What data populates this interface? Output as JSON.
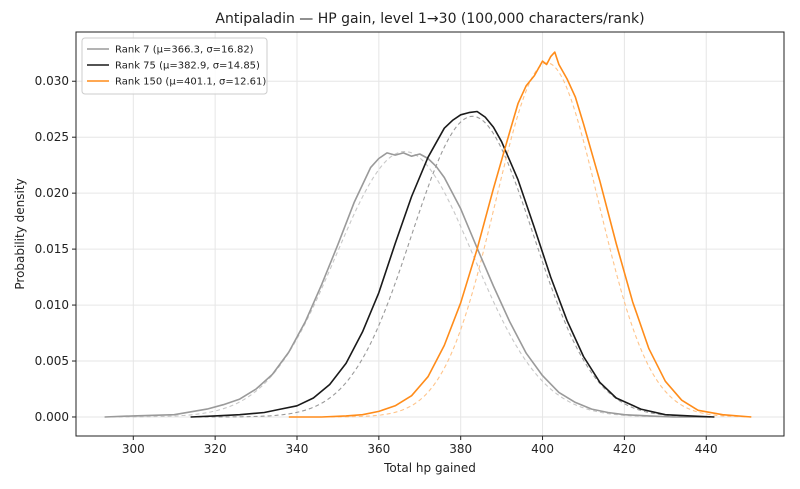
{
  "chart_data": {
    "type": "line",
    "title": "Antipaladin — HP gain, level 1→30 (100,000 characters/rank)",
    "xlabel": "Total hp gained",
    "ylabel": "Probability density",
    "xlim": [
      286,
      459
    ],
    "ylim": [
      -0.0017,
      0.0344
    ],
    "xticks": [
      300,
      320,
      340,
      360,
      380,
      400,
      420,
      440
    ],
    "yticks": [
      0.0,
      0.005,
      0.01,
      0.015,
      0.02,
      0.025,
      0.03
    ],
    "ytick_labels": [
      "0.000",
      "0.005",
      "0.010",
      "0.015",
      "0.020",
      "0.025",
      "0.030"
    ],
    "grid": true,
    "legend_position": "top-left",
    "series": [
      {
        "name": "Rank 7 (μ=366.3, σ=16.82)",
        "color": "#9a9a9a",
        "fit_color": "#c8c8c8",
        "mu": 366.3,
        "sigma": 16.82,
        "x_range": [
          293,
          441
        ],
        "x": [
          293,
          300,
          310,
          318,
          322,
          326,
          330,
          334,
          338,
          342,
          346,
          350,
          354,
          358,
          360,
          362,
          364,
          366,
          368,
          370,
          372,
          374,
          376,
          380,
          384,
          388,
          392,
          396,
          400,
          404,
          408,
          412,
          416,
          420,
          426,
          432,
          441
        ],
        "y": [
          0.0,
          0.0001,
          0.0002,
          0.0007,
          0.0011,
          0.0016,
          0.0025,
          0.0038,
          0.0058,
          0.0085,
          0.0118,
          0.0154,
          0.0192,
          0.0223,
          0.0231,
          0.0236,
          0.0234,
          0.0236,
          0.0233,
          0.0235,
          0.0231,
          0.0224,
          0.0214,
          0.0186,
          0.0151,
          0.0117,
          0.0085,
          0.0057,
          0.0037,
          0.0022,
          0.0013,
          0.0007,
          0.0004,
          0.0002,
          0.0001,
          0.0,
          0.0
        ]
      },
      {
        "name": "Rank 75 (μ=382.9, σ=14.85)",
        "color": "#1a1a1a",
        "fit_color": "#9a9a9a",
        "mu": 382.9,
        "sigma": 14.85,
        "x_range": [
          314,
          442
        ],
        "x": [
          314,
          320,
          326,
          332,
          336,
          340,
          344,
          348,
          352,
          356,
          360,
          364,
          368,
          372,
          374,
          376,
          378,
          380,
          382,
          384,
          386,
          388,
          390,
          394,
          398,
          402,
          406,
          410,
          414,
          418,
          424,
          430,
          436,
          442
        ],
        "y": [
          0.0,
          0.0001,
          0.0002,
          0.0004,
          0.0007,
          0.001,
          0.0017,
          0.0029,
          0.0048,
          0.0076,
          0.0111,
          0.0155,
          0.0197,
          0.0232,
          0.0245,
          0.0258,
          0.0265,
          0.027,
          0.0272,
          0.0273,
          0.0268,
          0.0259,
          0.0246,
          0.0212,
          0.0169,
          0.0125,
          0.0086,
          0.0054,
          0.0031,
          0.0017,
          0.0007,
          0.0002,
          0.0001,
          0.0
        ]
      },
      {
        "name": "Rank 150 (μ=401.1, σ=12.61)",
        "color": "#ff8c1a",
        "fit_color": "#ffc48a",
        "mu": 401.1,
        "sigma": 12.61,
        "x_range": [
          338,
          451
        ],
        "x": [
          338,
          346,
          352,
          356,
          360,
          364,
          368,
          372,
          376,
          380,
          384,
          388,
          392,
          394,
          396,
          398,
          400,
          401,
          402,
          403,
          404,
          406,
          408,
          410,
          414,
          418,
          422,
          426,
          430,
          434,
          438,
          444,
          451
        ],
        "y": [
          0.0,
          0.0,
          0.0001,
          0.0002,
          0.0005,
          0.001,
          0.0019,
          0.0036,
          0.0064,
          0.0102,
          0.015,
          0.0204,
          0.0255,
          0.028,
          0.0296,
          0.0305,
          0.0318,
          0.0315,
          0.0322,
          0.0326,
          0.0315,
          0.0302,
          0.0286,
          0.0262,
          0.0211,
          0.0155,
          0.0103,
          0.0061,
          0.0032,
          0.0015,
          0.0006,
          0.0002,
          0.0
        ]
      }
    ]
  }
}
